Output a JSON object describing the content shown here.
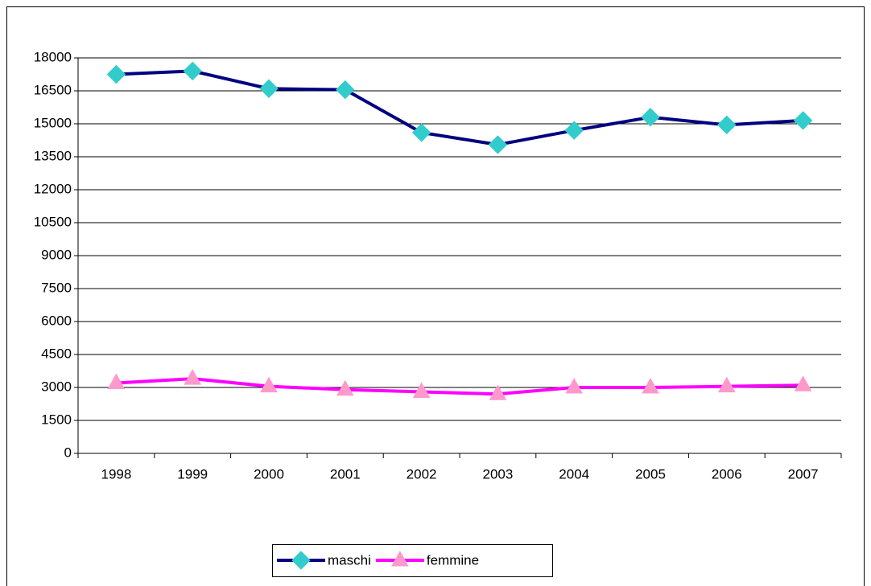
{
  "chart_data": {
    "type": "line",
    "categories": [
      "1998",
      "1999",
      "2000",
      "2001",
      "2002",
      "2003",
      "2004",
      "2005",
      "2006",
      "2007"
    ],
    "series": [
      {
        "name": "maschi",
        "color": "#000080",
        "marker_color": "#33CCCC",
        "marker": "diamond",
        "values": [
          17250,
          17400,
          16600,
          16550,
          14600,
          14050,
          14700,
          15300,
          14950,
          15150
        ]
      },
      {
        "name": "femmine",
        "color": "#FF00FF",
        "marker_color": "#FF99CC",
        "marker": "triangle",
        "values": [
          3200,
          3400,
          3050,
          2900,
          2800,
          2700,
          3000,
          3000,
          3050,
          3100
        ]
      }
    ],
    "ylim": [
      0,
      18000
    ],
    "yticks": [
      0,
      1500,
      3000,
      4500,
      6000,
      7500,
      9000,
      10500,
      12000,
      13500,
      15000,
      16500,
      18000
    ],
    "grid": true,
    "legend": "bottom"
  }
}
